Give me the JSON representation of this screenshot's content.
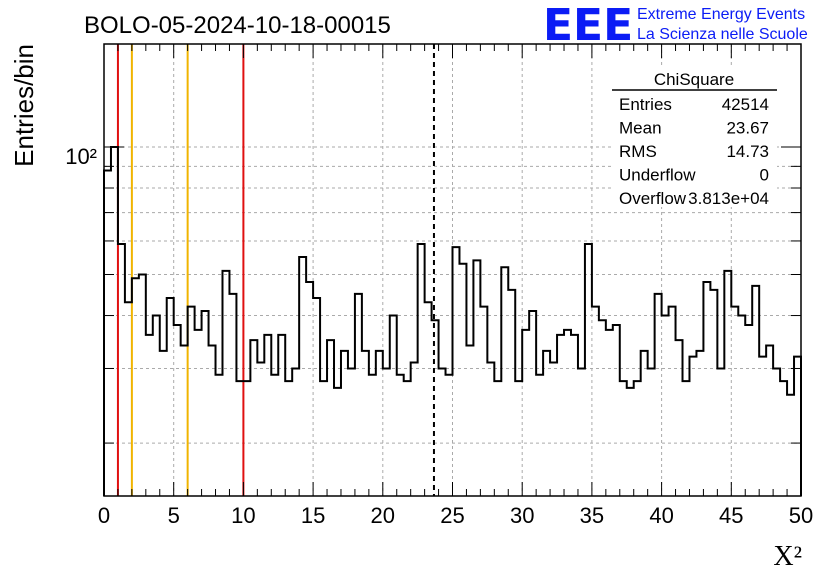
{
  "header": {
    "run_title": "BOLO-05-2024-10-18-00015",
    "logo_letters": "EEE",
    "brand_line1": "Extreme Energy Events",
    "brand_line2": "La Scienza nelle Scuole",
    "logo_color": "#0b1cf5"
  },
  "stats_box": {
    "title": "ChiSquare",
    "rows": [
      {
        "label": "Entries",
        "value": "42514"
      },
      {
        "label": "Mean",
        "value": "23.67"
      },
      {
        "label": "RMS",
        "value": "14.73"
      },
      {
        "label": "Underflow",
        "value": "0"
      },
      {
        "label": "Overflow",
        "value": "3.813e+04"
      }
    ]
  },
  "chart_data": {
    "type": "bar",
    "histogram_style": "step",
    "y_scale": "log",
    "xlabel": "X²",
    "ylabel": "Entries/bin",
    "xlim": [
      0,
      50
    ],
    "ylim": [
      15,
      175
    ],
    "bin_width": 0.5,
    "grid": true,
    "x_ticks": [
      "0",
      "5",
      "10",
      "15",
      "20",
      "25",
      "30",
      "35",
      "40",
      "45",
      "50"
    ],
    "y_tick_label": "10²",
    "y_tick_value": 100,
    "values": [
      88,
      100,
      59,
      43,
      49,
      50,
      36,
      40,
      33,
      44,
      38,
      34,
      42,
      37,
      41,
      34,
      29,
      51,
      45,
      28,
      28,
      35,
      31,
      36,
      29,
      36,
      28,
      30,
      55,
      48,
      44,
      28,
      35,
      27,
      33,
      30,
      45,
      33,
      29,
      33,
      30,
      40,
      29,
      28,
      31,
      59,
      43,
      39,
      30,
      29,
      58,
      53,
      34,
      54,
      42,
      31,
      28,
      52,
      46,
      28,
      37,
      41,
      29,
      33,
      31,
      36,
      37,
      36,
      30,
      59,
      42,
      39,
      37,
      38,
      28,
      27,
      28,
      33,
      30,
      45,
      40,
      42,
      35,
      28,
      32,
      33,
      48,
      46,
      30,
      51,
      42,
      40,
      38,
      47,
      32,
      34,
      30,
      28,
      26,
      32
    ],
    "vertical_lines": [
      {
        "x": 1,
        "color": "#e01010",
        "style": "solid"
      },
      {
        "x": 2,
        "color": "#f0b400",
        "style": "solid"
      },
      {
        "x": 6,
        "color": "#f0b400",
        "style": "solid"
      },
      {
        "x": 10,
        "color": "#e01010",
        "style": "solid"
      },
      {
        "x": 23.67,
        "color": "#000000",
        "style": "dashed"
      }
    ]
  }
}
